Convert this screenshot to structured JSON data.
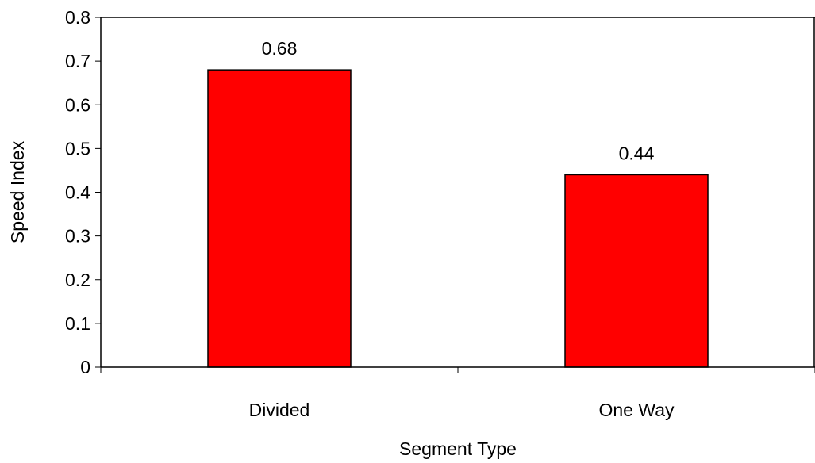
{
  "chart_data": {
    "type": "bar",
    "title": "",
    "xlabel": "Segment Type",
    "ylabel": "Speed Index",
    "categories": [
      "Divided",
      "One Way"
    ],
    "values": [
      0.68,
      0.44
    ],
    "data_labels": [
      "0.68",
      "0.44"
    ],
    "ylim": [
      0,
      0.8
    ],
    "yticks": [
      0,
      0.1,
      0.2,
      0.3,
      0.4,
      0.5,
      0.6,
      0.7,
      0.8
    ],
    "ytick_labels": [
      "0",
      "0.1",
      "0.2",
      "0.3",
      "0.4",
      "0.5",
      "0.6",
      "0.7",
      "0.8"
    ],
    "grid": false,
    "legend": "none",
    "bar_color": "#ff0000",
    "bar_edge_color": "#000000"
  }
}
